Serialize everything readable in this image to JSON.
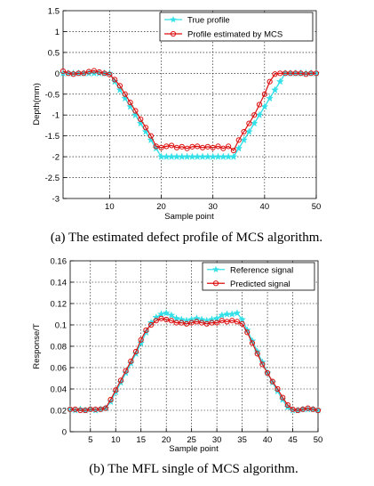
{
  "chart_data": [
    {
      "type": "line",
      "caption": "(a) The estimated defect profile of MCS algorithm.",
      "xlabel": "Sample point",
      "ylabel": "Depth(mm)",
      "xlim": [
        1,
        50
      ],
      "ylim": [
        -3,
        1.5
      ],
      "xticks": [
        10,
        20,
        30,
        40,
        50
      ],
      "yticks": [
        -3,
        -2.5,
        -2,
        -1.5,
        -1,
        -0.5,
        0,
        0.5,
        1,
        1.5
      ],
      "grid": true,
      "legend_position": "top-right",
      "x": [
        1,
        2,
        3,
        4,
        5,
        6,
        7,
        8,
        9,
        10,
        11,
        12,
        13,
        14,
        15,
        16,
        17,
        18,
        19,
        20,
        21,
        22,
        23,
        24,
        25,
        26,
        27,
        28,
        29,
        30,
        31,
        32,
        33,
        34,
        35,
        36,
        37,
        38,
        39,
        40,
        41,
        42,
        43,
        44,
        45,
        46,
        47,
        48,
        49,
        50
      ],
      "series": [
        {
          "name": "True profile",
          "color": "#33e0e8",
          "marker": "star",
          "values": [
            0,
            0,
            0,
            0,
            0,
            0,
            0,
            0,
            0,
            0,
            -0.2,
            -0.4,
            -0.6,
            -0.8,
            -1.0,
            -1.2,
            -1.4,
            -1.6,
            -1.8,
            -2,
            -2,
            -2,
            -2,
            -2,
            -2,
            -2,
            -2,
            -2,
            -2,
            -2,
            -2,
            -2,
            -2,
            -2,
            -1.8,
            -1.6,
            -1.4,
            -1.2,
            -1.0,
            -0.8,
            -0.6,
            -0.4,
            -0.2,
            0,
            0,
            0,
            0,
            0,
            0,
            0
          ]
        },
        {
          "name": "Profile estimated by MCS",
          "color": "#dd1010",
          "marker": "circle",
          "values": [
            0.05,
            0,
            -0.02,
            0,
            0,
            0.04,
            0.06,
            0.03,
            0,
            -0.03,
            -0.15,
            -0.3,
            -0.5,
            -0.7,
            -0.9,
            -1.1,
            -1.3,
            -1.5,
            -1.75,
            -1.78,
            -1.75,
            -1.73,
            -1.78,
            -1.76,
            -1.8,
            -1.76,
            -1.75,
            -1.78,
            -1.76,
            -1.78,
            -1.75,
            -1.8,
            -1.75,
            -1.85,
            -1.6,
            -1.4,
            -1.2,
            -1.0,
            -0.75,
            -0.5,
            -0.2,
            -0.02,
            0,
            0,
            0,
            0,
            0,
            -0.02,
            0,
            0
          ]
        }
      ]
    },
    {
      "type": "line",
      "caption": "(b) The MFL single of MCS algorithm.",
      "xlabel": "Sample point",
      "ylabel": "Response/T",
      "xlim": [
        1,
        50
      ],
      "ylim": [
        0,
        0.16
      ],
      "xticks": [
        5,
        10,
        15,
        20,
        25,
        30,
        35,
        40,
        45,
        50
      ],
      "yticks": [
        0,
        0.02,
        0.04,
        0.06,
        0.08,
        0.1,
        0.12,
        0.14,
        0.16
      ],
      "grid": true,
      "legend_position": "top-right",
      "x": [
        1,
        2,
        3,
        4,
        5,
        6,
        7,
        8,
        9,
        10,
        11,
        12,
        13,
        14,
        15,
        16,
        17,
        18,
        19,
        20,
        21,
        22,
        23,
        24,
        25,
        26,
        27,
        28,
        29,
        30,
        31,
        32,
        33,
        34,
        35,
        36,
        37,
        38,
        39,
        40,
        41,
        42,
        43,
        44,
        45,
        46,
        47,
        48,
        49,
        50
      ],
      "series": [
        {
          "name": "Reference signal",
          "color": "#33e0e8",
          "marker": "star",
          "values": [
            0.021,
            0.02,
            0.021,
            0.02,
            0.021,
            0.02,
            0.021,
            0.022,
            0.028,
            0.037,
            0.046,
            0.055,
            0.064,
            0.073,
            0.083,
            0.093,
            0.102,
            0.107,
            0.11,
            0.111,
            0.109,
            0.106,
            0.105,
            0.104,
            0.105,
            0.106,
            0.105,
            0.104,
            0.105,
            0.106,
            0.109,
            0.11,
            0.11,
            0.111,
            0.105,
            0.095,
            0.085,
            0.075,
            0.065,
            0.055,
            0.046,
            0.038,
            0.03,
            0.023,
            0.02,
            0.02,
            0.021,
            0.021,
            0.021,
            0.02
          ]
        },
        {
          "name": "Predicted signal",
          "color": "#dd1010",
          "marker": "circle",
          "values": [
            0.021,
            0.021,
            0.02,
            0.02,
            0.021,
            0.021,
            0.021,
            0.022,
            0.03,
            0.039,
            0.048,
            0.057,
            0.066,
            0.075,
            0.086,
            0.095,
            0.1,
            0.104,
            0.106,
            0.105,
            0.104,
            0.102,
            0.102,
            0.101,
            0.102,
            0.103,
            0.102,
            0.101,
            0.102,
            0.102,
            0.104,
            0.103,
            0.104,
            0.103,
            0.101,
            0.093,
            0.083,
            0.073,
            0.063,
            0.055,
            0.047,
            0.04,
            0.032,
            0.025,
            0.021,
            0.02,
            0.021,
            0.022,
            0.021,
            0.02
          ]
        }
      ]
    }
  ]
}
